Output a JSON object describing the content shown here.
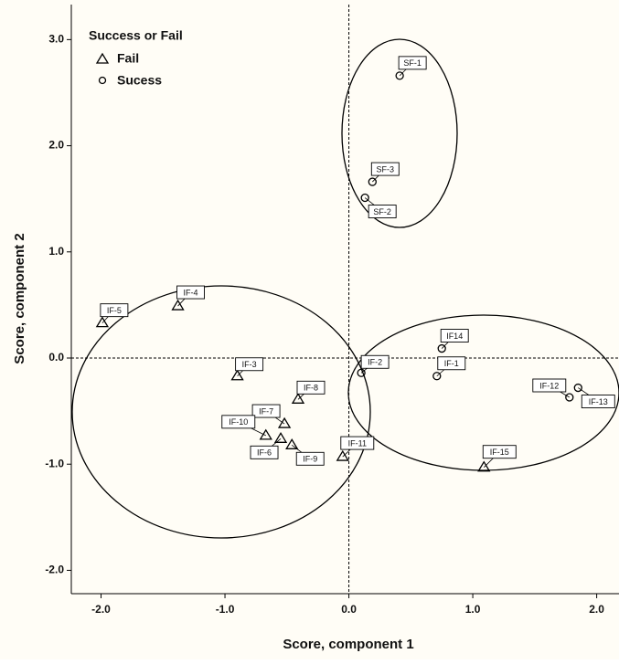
{
  "chart_data": {
    "type": "scatter",
    "xlabel": "Score, component 1",
    "ylabel": "Score, component 2",
    "legend_title": "Success or Fail",
    "legend": "upper left",
    "xlim": [
      -2.24,
      2.18
    ],
    "ylim": [
      -2.22,
      3.33
    ],
    "xticks": [
      {
        "value": -2,
        "label": "-2.0"
      },
      {
        "value": -1,
        "label": "-1.0"
      },
      {
        "value": 0,
        "label": "0.0"
      },
      {
        "value": 1,
        "label": "1.0"
      },
      {
        "value": 2,
        "label": "2.0"
      }
    ],
    "yticks": [
      {
        "value": -2,
        "label": "-2.0"
      },
      {
        "value": -1,
        "label": "-1.0"
      },
      {
        "value": 0,
        "label": "0.0"
      },
      {
        "value": 1,
        "label": "1.0"
      },
      {
        "value": 2,
        "label": "2.0"
      },
      {
        "value": 3,
        "label": "3.0"
      }
    ],
    "series": [
      {
        "name": "Fail",
        "marker": "triangle",
        "color": "#000000",
        "labels": [
          "IF-5",
          "IF-4",
          "IF-3",
          "IF-8",
          "IF-7",
          "IF-10",
          "IF-6",
          "IF-9",
          "IF-11",
          "IF-15"
        ],
        "x": [
          -1.99,
          -1.38,
          -0.9,
          -0.41,
          -0.52,
          -0.67,
          -0.55,
          -0.46,
          -0.05,
          1.09
        ],
        "values": [
          0.33,
          0.49,
          -0.17,
          -0.39,
          -0.62,
          -0.73,
          -0.76,
          -0.82,
          -0.93,
          -1.03
        ]
      },
      {
        "name": "Sucess",
        "marker": "circle",
        "color": "#000000",
        "labels": [
          "SF-1",
          "SF-3",
          "SF-2",
          "IF-2",
          "IF-1",
          "IF14",
          "IF-12",
          "IF-13"
        ],
        "x": [
          0.41,
          0.19,
          0.13,
          0.1,
          0.71,
          0.75,
          1.78,
          1.85
        ],
        "values": [
          2.66,
          1.66,
          1.51,
          -0.14,
          -0.17,
          0.09,
          -0.37,
          -0.28
        ]
      }
    ]
  }
}
